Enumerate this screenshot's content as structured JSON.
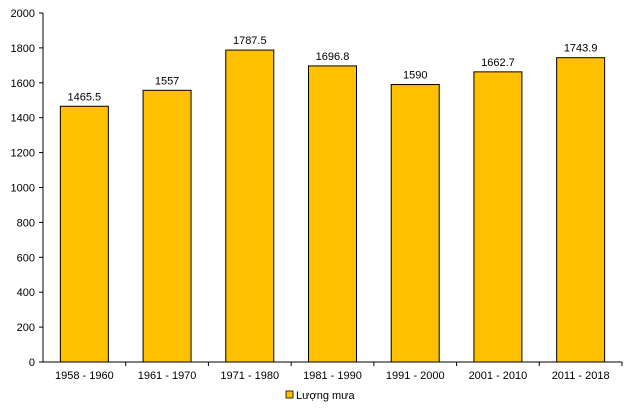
{
  "chart_data": {
    "type": "bar",
    "categories": [
      "1958 - 1960",
      "1961 - 1970",
      "1971 - 1980",
      "1981 - 1990",
      "1991 - 2000",
      "2001 - 2010",
      "2011 - 2018"
    ],
    "series": [
      {
        "name": "Lượng mưa",
        "values": [
          1465.5,
          1557,
          1787.5,
          1696.8,
          1590,
          1662.7,
          1743.9
        ],
        "value_labels": [
          "1465.5",
          "1557",
          "1787.5",
          "1696.8",
          "1590",
          "1662.7",
          "1743.9"
        ],
        "color": "#FFC000"
      }
    ],
    "title": "",
    "xlabel": "",
    "ylabel": "",
    "ylim": [
      0,
      2000
    ],
    "yticks": [
      "0",
      "200",
      "400",
      "600",
      "800",
      "1000",
      "1200",
      "1400",
      "1600",
      "1800",
      "2000"
    ],
    "grid": false,
    "legend": "bottom-center",
    "bar_outline_color": "#000000"
  }
}
